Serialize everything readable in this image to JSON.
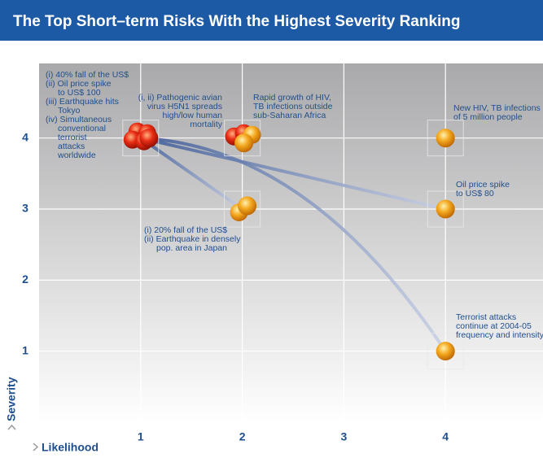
{
  "chart_data": {
    "type": "scatter",
    "title": "The Top Short–term Risks With the Highest Severity Ranking",
    "x_label": "Likelihood",
    "y_label": "Severity",
    "x": [
      1,
      2,
      2,
      4,
      4,
      4
    ],
    "values": [
      4,
      4,
      3,
      4,
      3,
      1
    ],
    "colors": [
      "#e0281a",
      "#e8601a",
      "#f0a020",
      "#f0a020",
      "#f0a020",
      "#f0a020"
    ],
    "xlim": [
      0,
      4.96
    ],
    "ylim": [
      0,
      5.05
    ],
    "xticks": [
      1,
      2,
      3,
      4
    ],
    "yticks": [
      1,
      2,
      3,
      4
    ],
    "grid": true,
    "annotations": [
      [
        "(i)  40% fall of the US$",
        "(ii)  Oil price spike",
        "to US$ 100",
        "(iii) Earthquake hits",
        "Tokyo",
        "(iv) Simultaneous",
        "conventional",
        "terrorist",
        "attacks",
        "worldwide"
      ],
      [
        "(i, ii) Pathogenic avian",
        "virus H5N1 spreads",
        "high/low human",
        "mortality"
      ],
      [
        "Rapid growth of HIV,",
        "TB infections outside",
        "sub-Saharan Africa"
      ],
      [
        "(i)  20% fall of the US$",
        "(ii)  Earthquake in densely",
        "pop. area in Japan"
      ],
      [
        "New HIV, TB infections",
        "of 5 million people"
      ],
      [
        "Oil price spike",
        "to US$ 80"
      ],
      [
        "Terrorist attacks",
        "continue at 2004-05",
        "frequency and intensity"
      ]
    ]
  }
}
